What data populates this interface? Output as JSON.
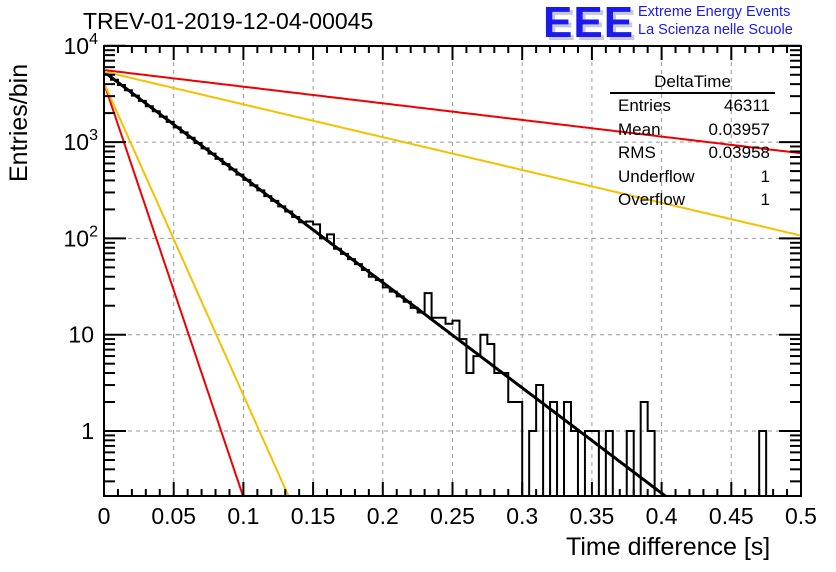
{
  "title": "TREV-01-2019-12-04-00045",
  "logo": {
    "text": "EEE",
    "line1": "Extreme Energy Events",
    "line2": "La Scienza nelle Scuole"
  },
  "stats_box": {
    "name": "DeltaTime",
    "rows": [
      {
        "label": "Entries",
        "value": "46311"
      },
      {
        "label": "Mean",
        "value": "0.03957"
      },
      {
        "label": "RMS",
        "value": "0.03958"
      },
      {
        "label": "Underflow",
        "value": "1"
      },
      {
        "label": "Overflow",
        "value": "1"
      }
    ]
  },
  "colors": {
    "histogram": "#000000",
    "fit": "#000000",
    "red_line": "#ee0000",
    "yellow_line": "#f5c000",
    "grid": "#999999"
  },
  "chart_data": {
    "type": "bar",
    "histogram_style": "step",
    "title": "TREV-01-2019-12-04-00045",
    "xlabel": "Time difference [s]",
    "ylabel": "Entries/bin",
    "xlim": [
      0,
      0.5
    ],
    "ylim": [
      0.21,
      10000
    ],
    "yscale": "log",
    "grid": true,
    "x_ticks": [
      "0",
      "0.05",
      "0.1",
      "0.15",
      "0.2",
      "0.25",
      "0.3",
      "0.35",
      "0.4",
      "0.45",
      "0.5"
    ],
    "y_ticks": [
      {
        "value": 1,
        "label": "1"
      },
      {
        "value": 10,
        "label": "10"
      },
      {
        "value": 100,
        "label": "10^2"
      },
      {
        "value": 1000,
        "label": "10^3"
      },
      {
        "value": 10000,
        "label": "10^4"
      }
    ],
    "bin_width": 0.005,
    "bins": [
      5040,
      4440,
      3920,
      3450,
      3040,
      2680,
      2360,
      2090,
      1840,
      1620,
      1420,
      1260,
      1110,
      980,
      860,
      760,
      670,
      590,
      520,
      460,
      405,
      355,
      315,
      275,
      245,
      215,
      190,
      167,
      147,
      150,
      140,
      100,
      110,
      78,
      69,
      61,
      54,
      47,
      40,
      37,
      31,
      28,
      25,
      22,
      19,
      17,
      27,
      15,
      15,
      13,
      14,
      9,
      4,
      6,
      10,
      8,
      4,
      4,
      2,
      2,
      0,
      1,
      3,
      0,
      2,
      0,
      2,
      1,
      0,
      1,
      1,
      0,
      1,
      0,
      0,
      1,
      0,
      2,
      1,
      0,
      0,
      0,
      0,
      0,
      0,
      0,
      0,
      0,
      0,
      0,
      0,
      0,
      0,
      0,
      1,
      0,
      0,
      0,
      0,
      0
    ],
    "series": [
      {
        "name": "exponential fit",
        "color": "#000000",
        "amplitude": 5370,
        "tau": 0.0397
      },
      {
        "name": "red slow reference",
        "color": "#ee0000",
        "amplitude": 5600,
        "tau": 0.2515
      },
      {
        "name": "yellow slow reference",
        "color": "#f5c000",
        "amplitude": 5400,
        "tau": 0.1275
      },
      {
        "name": "red fast reference",
        "color": "#ee0000",
        "amplitude": 4100,
        "tau": 0.0101
      },
      {
        "name": "yellow fast reference",
        "color": "#f5c000",
        "amplitude": 4100,
        "tau": 0.0134
      }
    ]
  }
}
